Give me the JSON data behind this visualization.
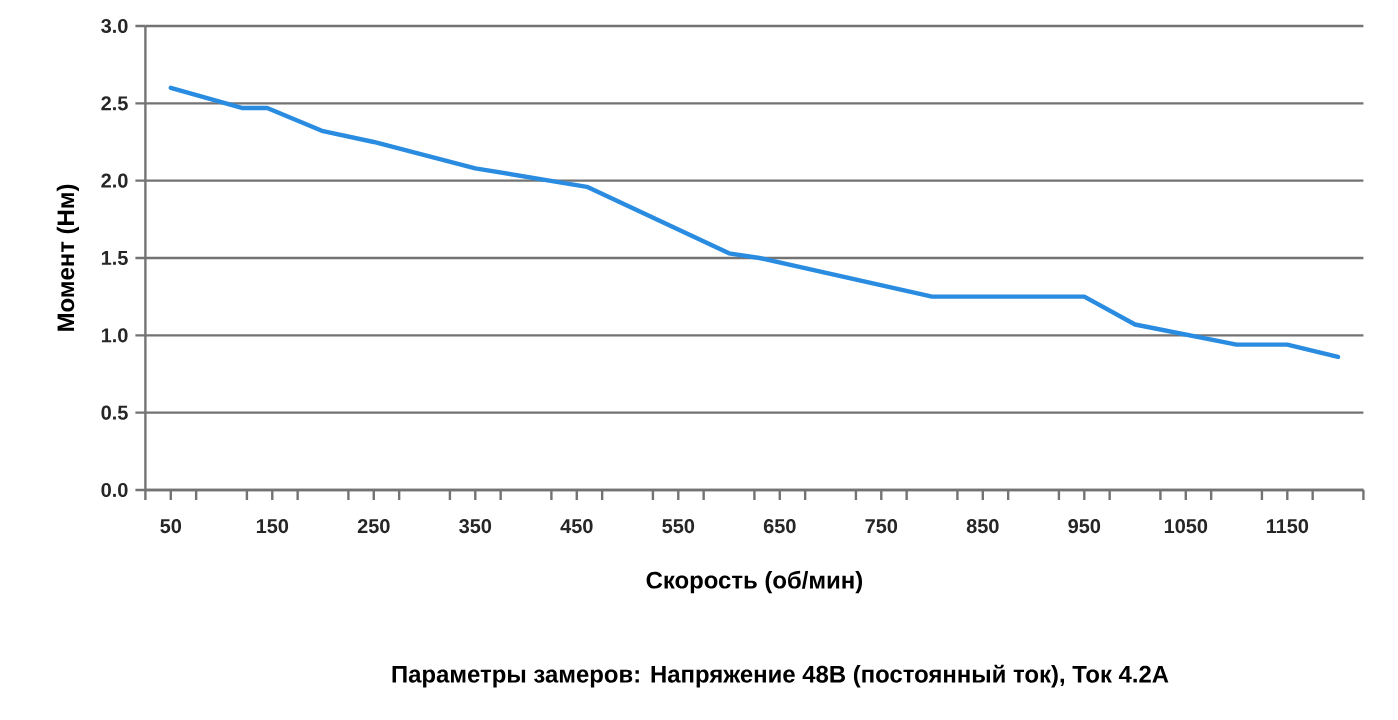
{
  "chart_data": {
    "type": "line",
    "xlabel": "Скорость (об/мин)",
    "ylabel": "Момент (Нм)",
    "annotations": [
      "Параметры замеров: Напряжение  48В (постоянный ток), Ток 4.2А"
    ],
    "x": [
      50,
      120,
      145,
      200,
      250,
      350,
      460,
      600,
      630,
      800,
      950,
      1000,
      1100,
      1150,
      1200
    ],
    "series": [
      {
        "color": "#2a8ce0",
        "values": [
          2.6,
          2.47,
          2.47,
          2.32,
          2.25,
          2.08,
          1.96,
          1.53,
          1.5,
          1.25,
          1.25,
          1.07,
          0.94,
          0.94,
          0.86
        ]
      }
    ],
    "xlim": [
      25,
      1225
    ],
    "xticks": [
      {
        "value": 25,
        "label": null
      },
      {
        "value": 50,
        "label": "50"
      },
      {
        "value": 75,
        "label": null
      },
      {
        "value": 125,
        "label": null
      },
      {
        "value": 150,
        "label": "150"
      },
      {
        "value": 175,
        "label": null
      },
      {
        "value": 225,
        "label": null
      },
      {
        "value": 250,
        "label": "250"
      },
      {
        "value": 275,
        "label": null
      },
      {
        "value": 325,
        "label": null
      },
      {
        "value": 350,
        "label": "350"
      },
      {
        "value": 375,
        "label": null
      },
      {
        "value": 425,
        "label": null
      },
      {
        "value": 450,
        "label": "450"
      },
      {
        "value": 475,
        "label": null
      },
      {
        "value": 525,
        "label": null
      },
      {
        "value": 550,
        "label": "550"
      },
      {
        "value": 575,
        "label": null
      },
      {
        "value": 625,
        "label": null
      },
      {
        "value": 650,
        "label": "650"
      },
      {
        "value": 675,
        "label": null
      },
      {
        "value": 725,
        "label": null
      },
      {
        "value": 750,
        "label": "750"
      },
      {
        "value": 775,
        "label": null
      },
      {
        "value": 825,
        "label": null
      },
      {
        "value": 850,
        "label": "850"
      },
      {
        "value": 875,
        "label": null
      },
      {
        "value": 925,
        "label": null
      },
      {
        "value": 950,
        "label": "950"
      },
      {
        "value": 975,
        "label": null
      },
      {
        "value": 1025,
        "label": null
      },
      {
        "value": 1050,
        "label": "1050"
      },
      {
        "value": 1075,
        "label": null
      },
      {
        "value": 1125,
        "label": null
      },
      {
        "value": 1150,
        "label": "1150"
      },
      {
        "value": 1175,
        "label": null
      },
      {
        "value": 1225,
        "label": null
      }
    ],
    "ylim": [
      0,
      3
    ],
    "yticks": [
      {
        "value": 0,
        "label": "0.0"
      },
      {
        "value": 0.5,
        "label": "0.5"
      },
      {
        "value": 1,
        "label": "1.0"
      },
      {
        "value": 1.5,
        "label": "1.5"
      },
      {
        "value": 2,
        "label": "2.0"
      },
      {
        "value": 2.5,
        "label": "2.5"
      },
      {
        "value": 3,
        "label": "3.0"
      }
    ],
    "grid": "y",
    "marker": "none",
    "line_style": "solid"
  }
}
